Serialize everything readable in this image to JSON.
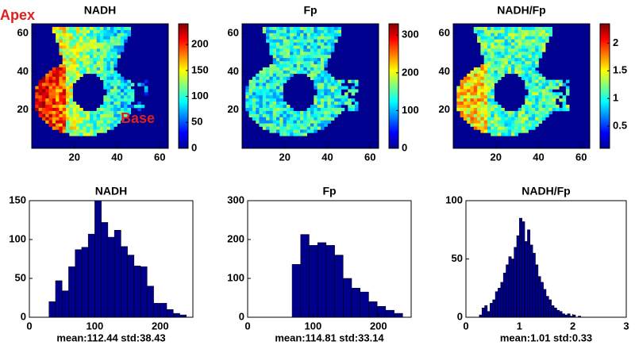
{
  "chart_data": [
    {
      "type": "heatmap",
      "title": "NADH",
      "xlim": [
        0,
        64
      ],
      "ylim": [
        0,
        65
      ],
      "xticks": [
        20,
        40,
        60
      ],
      "yticks": [
        20,
        40,
        60
      ],
      "colorbar_lim": [
        0,
        240
      ],
      "colorbar_ticks": [
        0,
        50,
        100,
        150,
        200
      ],
      "annotations": [
        "Apex",
        "Base"
      ],
      "annotation_color": "#e02020"
    },
    {
      "type": "heatmap",
      "title": "Fp",
      "xlim": [
        0,
        64
      ],
      "ylim": [
        0,
        65
      ],
      "xticks": [
        20,
        40,
        60
      ],
      "yticks": [
        20,
        40,
        60
      ],
      "colorbar_lim": [
        0,
        330
      ],
      "colorbar_ticks": [
        0,
        100,
        200,
        300
      ]
    },
    {
      "type": "heatmap",
      "title": "NADH/Fp",
      "xlim": [
        0,
        64
      ],
      "ylim": [
        0,
        65
      ],
      "xticks": [
        20,
        40,
        60
      ],
      "yticks": [
        20,
        40,
        60
      ],
      "colorbar_lim": [
        0.1,
        2.35
      ],
      "colorbar_ticks": [
        0.5,
        1,
        1.5,
        2
      ]
    },
    {
      "type": "histogram",
      "title": "NADH",
      "xlabel": "mean:112.44 std:38.43",
      "color": "#00008b",
      "bins": [
        30,
        40,
        50,
        60,
        70,
        80,
        90,
        100,
        110,
        120,
        130,
        140,
        150,
        160,
        170,
        180,
        190,
        200,
        210,
        220,
        230,
        240
      ],
      "values": [
        20,
        47,
        34,
        65,
        87,
        90,
        107,
        150,
        122,
        103,
        112,
        91,
        80,
        66,
        65,
        40,
        18,
        18,
        10,
        5,
        3
      ],
      "xlim": [
        0,
        250
      ],
      "ylim": [
        0,
        150
      ],
      "xticks": [
        0,
        100,
        200
      ],
      "yticks": [
        0,
        50,
        100,
        150
      ]
    },
    {
      "type": "histogram",
      "title": "Fp",
      "xlabel": "mean:114.81 std:33.14",
      "color": "#00008b",
      "bins": [
        68,
        81,
        94,
        107,
        120,
        133,
        146,
        159,
        172,
        185,
        198,
        211,
        224,
        237
      ],
      "values": [
        136,
        213,
        185,
        192,
        185,
        160,
        100,
        75,
        65,
        40,
        28,
        18,
        10
      ],
      "xlim": [
        0,
        250
      ],
      "ylim": [
        0,
        300
      ],
      "xticks": [
        0,
        100,
        200
      ],
      "yticks": [
        0,
        100,
        200,
        300
      ]
    },
    {
      "type": "histogram",
      "title": "NADH/Fp",
      "xlabel": "mean:1.01 std:0.33",
      "color": "#00008b",
      "bins": [
        0.25,
        0.3,
        0.35,
        0.4,
        0.45,
        0.5,
        0.55,
        0.6,
        0.65,
        0.7,
        0.75,
        0.8,
        0.85,
        0.9,
        0.95,
        1.0,
        1.05,
        1.1,
        1.15,
        1.2,
        1.25,
        1.3,
        1.35,
        1.4,
        1.45,
        1.5,
        1.55,
        1.6,
        1.65,
        1.7,
        1.75,
        1.8,
        1.85,
        1.9,
        1.95,
        2.0,
        2.05,
        2.1,
        2.15
      ],
      "values": [
        2,
        8,
        10,
        5,
        12,
        15,
        22,
        25,
        30,
        38,
        45,
        52,
        50,
        60,
        70,
        85,
        82,
        65,
        75,
        62,
        55,
        45,
        35,
        30,
        24,
        18,
        15,
        10,
        8,
        6,
        5,
        3,
        2,
        3,
        1,
        2,
        0,
        1
      ],
      "xlim": [
        0,
        3
      ],
      "ylim": [
        0,
        100
      ],
      "xticks": [
        0,
        1,
        2,
        3
      ],
      "yticks": [
        0,
        50,
        100
      ]
    }
  ]
}
